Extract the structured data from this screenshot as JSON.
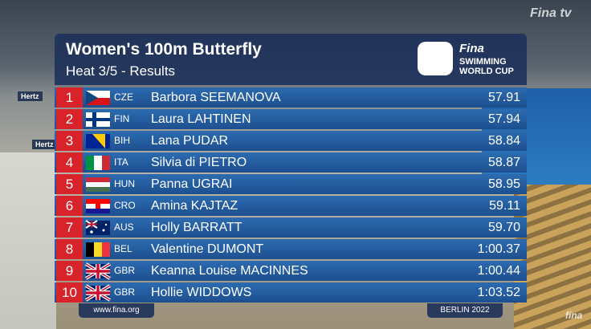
{
  "header": {
    "title": "Women's 100m Butterfly",
    "subtitle": "Heat 3/5 - Results"
  },
  "logo": {
    "brand": "Fina",
    "line1": "SWIMMING",
    "line2": "WORLD CUP"
  },
  "rows": [
    {
      "rank": "1",
      "country": "CZE",
      "name": "Barbora SEEMANOVA",
      "time": "57.91"
    },
    {
      "rank": "2",
      "country": "FIN",
      "name": "Laura LAHTINEN",
      "time": "57.94"
    },
    {
      "rank": "3",
      "country": "BIH",
      "name": "Lana PUDAR",
      "time": "58.84"
    },
    {
      "rank": "4",
      "country": "ITA",
      "name": "Silvia di PIETRO",
      "time": "58.87"
    },
    {
      "rank": "5",
      "country": "HUN",
      "name": "Panna UGRAI",
      "time": "58.95"
    },
    {
      "rank": "6",
      "country": "CRO",
      "name": "Amina KAJTAZ",
      "time": "59.11"
    },
    {
      "rank": "7",
      "country": "AUS",
      "name": "Holly BARRATT",
      "time": "59.70"
    },
    {
      "rank": "8",
      "country": "BEL",
      "name": "Valentine DUMONT",
      "time": "1:00.37"
    },
    {
      "rank": "9",
      "country": "GBR",
      "name": "Keanna Louise MACINNES",
      "time": "1:00.44"
    },
    {
      "rank": "10",
      "country": "GBR",
      "name": "Hollie WIDDOWS",
      "time": "1:03.52"
    }
  ],
  "footer": {
    "website": "www.fina.org",
    "location": "BERLIN 2022"
  },
  "background": {
    "sign_left": "Hertz",
    "sign_left2": "Hertz",
    "watermark_top": "Fina tv",
    "watermark_bottom": "fina"
  }
}
